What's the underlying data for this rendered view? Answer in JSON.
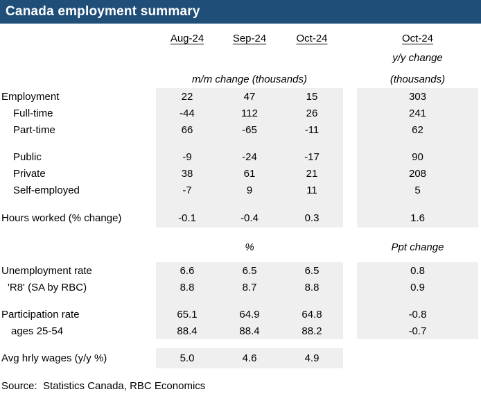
{
  "title": "Canada employment summary",
  "headers": {
    "cols": [
      "Aug-24",
      "Sep-24",
      "Oct-24",
      "Oct-24"
    ],
    "yy_change": "y/y change",
    "mm_unit": "m/m change (thousands)",
    "yy_unit": "(thousands)",
    "pct": "%",
    "ppt": "Ppt change"
  },
  "rows": [
    {
      "label": "Employment",
      "values": [
        "22",
        "47",
        "15",
        "303"
      ]
    },
    {
      "label": "Full-time",
      "values": [
        "-44",
        "112",
        "26",
        "241"
      ]
    },
    {
      "label": "Part-time",
      "values": [
        "66",
        "-65",
        "-11",
        "62"
      ]
    },
    {
      "label": "Public",
      "values": [
        "-9",
        "-24",
        "-17",
        "90"
      ]
    },
    {
      "label": "Private",
      "values": [
        "38",
        "61",
        "21",
        "208"
      ]
    },
    {
      "label": "Self-employed",
      "values": [
        "-7",
        "9",
        "11",
        "5"
      ]
    },
    {
      "label": "Hours worked (% change)",
      "values": [
        "-0.1",
        "-0.4",
        "0.3",
        "1.6"
      ]
    },
    {
      "label": "Unemployment rate",
      "values": [
        "6.6",
        "6.5",
        "6.5",
        "0.8"
      ]
    },
    {
      "label": "'R8' (SA by RBC)",
      "values": [
        "8.8",
        "8.7",
        "8.8",
        "0.9"
      ]
    },
    {
      "label": "Participation rate",
      "values": [
        "65.1",
        "64.9",
        "64.8",
        "-0.8"
      ]
    },
    {
      "label": "ages 25-54",
      "values": [
        "88.4",
        "88.4",
        "88.2",
        "-0.7"
      ]
    },
    {
      "label": "Avg hrly wages (y/y %)",
      "values": [
        "5.0",
        "4.6",
        "4.9",
        ""
      ]
    }
  ],
  "source": "Source:  Statistics Canada, RBC Economics",
  "colors": {
    "header_bar": "#1F4E79",
    "cell_bg": "#EFEFEF",
    "title_text": "#FFFFFF",
    "text": "#000000"
  },
  "chart_data": {
    "type": "table",
    "title": "Canada employment summary",
    "columns": [
      "Aug-24 m/m change (thousands)",
      "Sep-24 m/m change (thousands)",
      "Oct-24 m/m change (thousands)",
      "Oct-24 y/y change (thousands)"
    ],
    "rows": [
      {
        "label": "Employment",
        "values": [
          22,
          47,
          15,
          303
        ]
      },
      {
        "label": "Full-time",
        "values": [
          -44,
          112,
          26,
          241
        ]
      },
      {
        "label": "Part-time",
        "values": [
          66,
          -65,
          -11,
          62
        ]
      },
      {
        "label": "Public",
        "values": [
          -9,
          -24,
          -17,
          90
        ]
      },
      {
        "label": "Private",
        "values": [
          38,
          61,
          21,
          208
        ]
      },
      {
        "label": "Self-employed",
        "values": [
          -7,
          9,
          11,
          5
        ]
      },
      {
        "label": "Hours worked (% change)",
        "values": [
          -0.1,
          -0.4,
          0.3,
          1.6
        ]
      },
      {
        "label": "Unemployment rate (%)",
        "values": [
          6.6,
          6.5,
          6.5,
          0.8
        ]
      },
      {
        "label": "'R8' (SA by RBC) (%)",
        "values": [
          8.8,
          8.7,
          8.8,
          0.9
        ]
      },
      {
        "label": "Participation rate (%)",
        "values": [
          65.1,
          64.9,
          64.8,
          -0.8
        ]
      },
      {
        "label": "ages 25-54 (%)",
        "values": [
          88.4,
          88.4,
          88.2,
          -0.7
        ]
      },
      {
        "label": "Avg hrly wages (y/y %)",
        "values": [
          5.0,
          4.6,
          4.9,
          null
        ]
      }
    ],
    "units_note": "rate rows in %, Oct-24 y/y column for rates is Ppt change",
    "source": "Source:  Statistics Canada, RBC Economics"
  }
}
